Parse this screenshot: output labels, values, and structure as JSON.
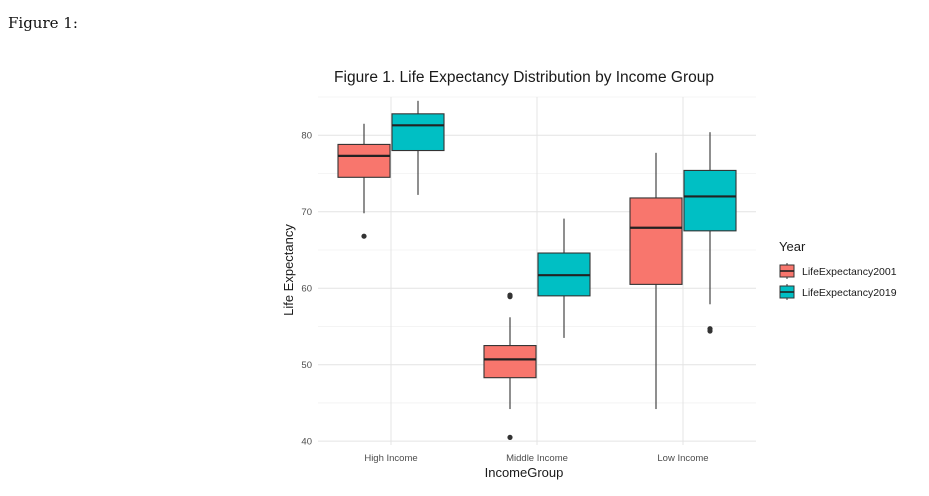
{
  "figure_label": "Figure 1:",
  "chart_data": {
    "type": "boxplot",
    "title": "Figure 1. Life Expectancy Distribution by Income Group",
    "xlabel": "IncomeGroup",
    "ylabel": "Life Expectancy",
    "ylim": [
      39.5,
      85
    ],
    "yticks": [
      40,
      50,
      60,
      70,
      80
    ],
    "categories": [
      "High Income",
      "Middle Income",
      "Low Income"
    ],
    "grid": true,
    "legend": {
      "title": "Year",
      "position": "right"
    },
    "series": [
      {
        "name": "LifeExpectancy2001",
        "color": "#F8766D",
        "boxes": [
          {
            "whisker_low": 69.8,
            "q1": 74.5,
            "median": 77.3,
            "q3": 78.8,
            "whisker_high": 81.5,
            "outliers": [
              66.8
            ]
          },
          {
            "whisker_low": 44.2,
            "q1": 48.3,
            "median": 50.7,
            "q3": 52.5,
            "whisker_high": 56.2,
            "outliers": [
              40.5,
              58.9,
              59.1
            ]
          },
          {
            "whisker_low": 44.2,
            "q1": 60.5,
            "median": 67.9,
            "q3": 71.8,
            "whisker_high": 77.7,
            "outliers": []
          }
        ]
      },
      {
        "name": "LifeExpectancy2019",
        "color": "#00BFC4",
        "boxes": [
          {
            "whisker_low": 72.2,
            "q1": 78.0,
            "median": 81.3,
            "q3": 82.8,
            "whisker_high": 84.5,
            "outliers": []
          },
          {
            "whisker_low": 53.5,
            "q1": 59.0,
            "median": 61.7,
            "q3": 64.6,
            "whisker_high": 69.1,
            "outliers": []
          },
          {
            "whisker_low": 57.9,
            "q1": 67.5,
            "median": 72.0,
            "q3": 75.4,
            "whisker_high": 80.4,
            "outliers": [
              54.4,
              54.7
            ]
          }
        ]
      }
    ]
  }
}
